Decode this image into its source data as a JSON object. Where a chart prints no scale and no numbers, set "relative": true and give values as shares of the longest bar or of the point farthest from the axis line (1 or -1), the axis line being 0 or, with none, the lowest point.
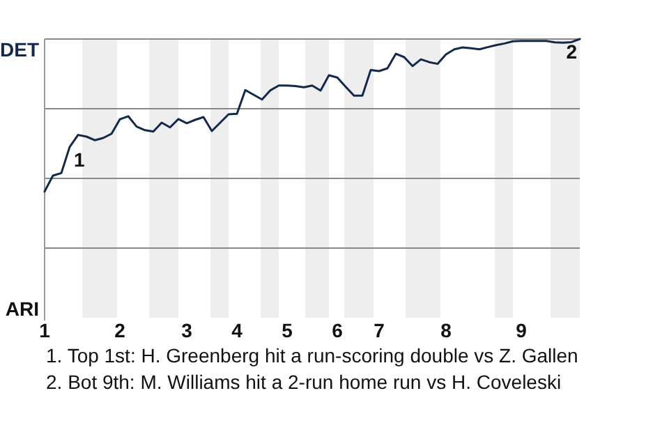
{
  "chart_data": {
    "type": "line",
    "relative": true,
    "categories": [
      "1",
      null,
      null,
      null,
      null,
      null,
      null,
      null,
      null,
      "2",
      null,
      null,
      null,
      null,
      null,
      null,
      null,
      "3",
      null,
      null,
      null,
      null,
      null,
      "4",
      null,
      null,
      null,
      null,
      null,
      "5",
      null,
      null,
      null,
      null,
      null,
      "6",
      null,
      null,
      null,
      null,
      "7",
      null,
      null,
      null,
      null,
      null,
      null,
      null,
      "8",
      null,
      null,
      null,
      null,
      null,
      null,
      null,
      null,
      "9",
      null,
      null,
      null,
      null,
      null,
      null,
      null
    ],
    "marker": "none",
    "line_style": "solid",
    "ref_lines": [
      {
        "axis": "y",
        "value": 0.25,
        "color": "#888888"
      },
      {
        "axis": "y",
        "value": 0.5,
        "color": "#888888"
      },
      {
        "axis": "y",
        "value": 0.75,
        "color": "#888888"
      },
      {
        "axis": "y",
        "value": 1,
        "color": "#888888"
      }
    ],
    "series": [
      {
        "color": "#13294b",
        "values": [
          0.453,
          0.51,
          0.519,
          0.613,
          0.656,
          0.65,
          0.637,
          0.645,
          0.66,
          0.712,
          0.723,
          0.686,
          0.673,
          0.668,
          0.7,
          0.683,
          0.713,
          0.698,
          0.71,
          0.72,
          0.67,
          0.7,
          0.73,
          0.732,
          0.817,
          0.8,
          0.783,
          0.816,
          0.833,
          0.833,
          0.831,
          0.827,
          0.833,
          0.815,
          0.87,
          0.862,
          0.829,
          0.797,
          0.797,
          0.889,
          0.885,
          0.895,
          0.947,
          0.935,
          0.903,
          0.927,
          0.917,
          0.911,
          0.945,
          0.963,
          0.97,
          0.967,
          0.963,
          0.971,
          0.978,
          0.984,
          0.992,
          0.993,
          0.993,
          0.993,
          0.993,
          0.988,
          0.987,
          0.989,
          1
        ]
      }
    ],
    "annotations": [
      {
        "text": "1",
        "y": 0.613
      },
      {
        "text": "2",
        "y": 1
      },
      "DET",
      "ARI",
      "1. Top 1st: H. Greenberg hit a run-scoring double vs Z. Gallen",
      "2. Bot 9th: M. Williams hit a 2-run home run vs H. Coveleski"
    ]
  }
}
